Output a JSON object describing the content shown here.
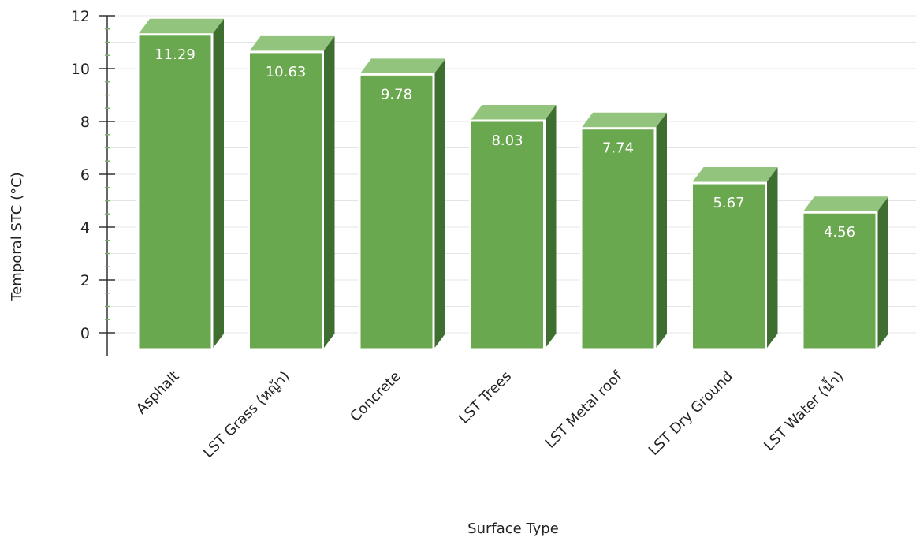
{
  "chart_data": {
    "type": "bar",
    "style": "3d-column",
    "categories": [
      "Asphalt",
      "LST Grass (หญ้า)",
      "Concrete",
      "LST Trees",
      "LST Metal roof",
      "LST Dry Ground",
      "LST Water (น้ำ)"
    ],
    "values": [
      11.29,
      10.63,
      9.78,
      8.03,
      7.74,
      5.67,
      4.56
    ],
    "data_labels": [
      "11.29",
      "10.63",
      "9.78",
      "8.03",
      "7.74",
      "5.67",
      "4.56"
    ],
    "xlabel": "Surface Type",
    "ylabel": "Temporal STC (°C)",
    "ylim": [
      0,
      12
    ],
    "yticks": [
      "0",
      "2",
      "4",
      "6",
      "8",
      "10",
      "12"
    ],
    "grid": true,
    "legend": "none",
    "colors": {
      "bar_front": "#6aa84f",
      "bar_top": "#93c47d",
      "bar_side": "#3f6e31",
      "bar_edge": "#ffffff",
      "grid": "#e4e4e4",
      "axis": "#333333",
      "minor_tick": "#7fb069"
    }
  }
}
